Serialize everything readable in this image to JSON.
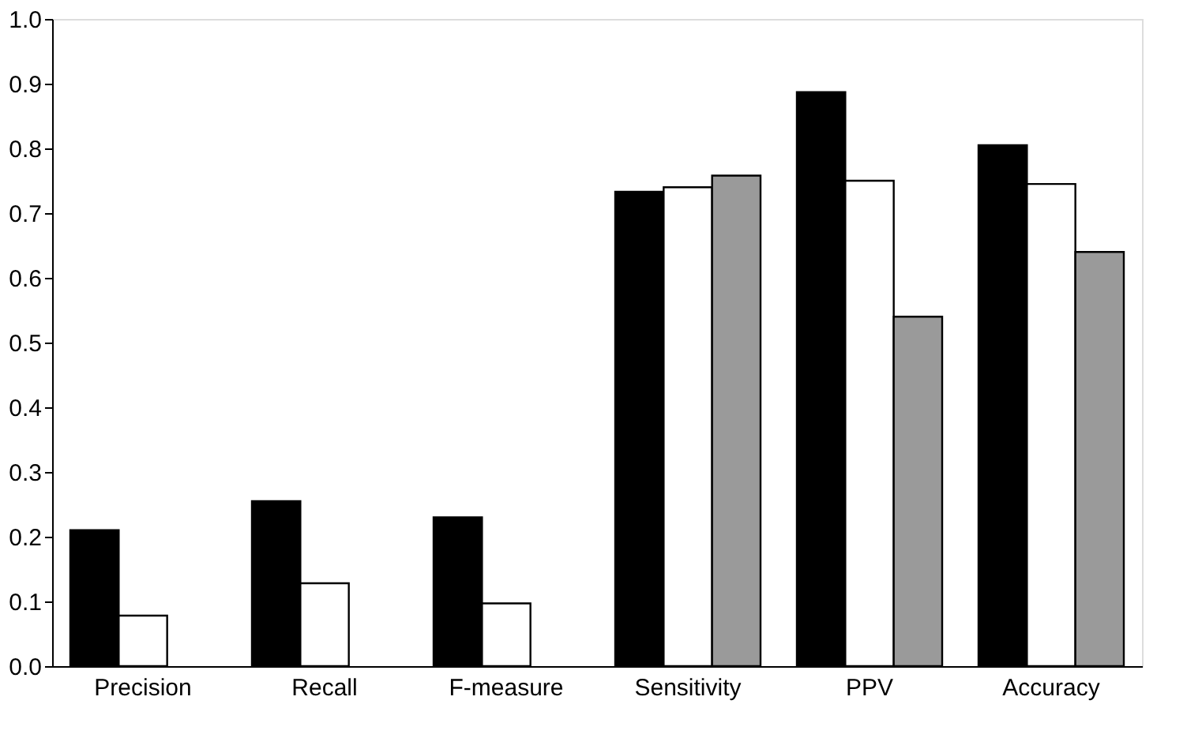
{
  "chart_data": {
    "type": "bar",
    "categories": [
      "Precision",
      "Recall",
      "F-measure",
      "Sensitivity",
      "PPV",
      "Accuracy"
    ],
    "series": [
      {
        "color": "#000000",
        "values": [
          0.21,
          0.255,
          0.23,
          0.733,
          0.887,
          0.805
        ]
      },
      {
        "color": "#ffffff",
        "values": [
          0.078,
          0.128,
          0.097,
          0.74,
          0.75,
          0.745
        ]
      },
      {
        "color": "#9a9a9a",
        "values": [
          null,
          null,
          null,
          0.758,
          0.54,
          0.64
        ]
      }
    ],
    "ylim": [
      0,
      1
    ],
    "yticks": [
      {
        "value": 0,
        "label": "0.0"
      },
      {
        "value": 0.1,
        "label": "0.1"
      },
      {
        "value": 0.2,
        "label": "0.2"
      },
      {
        "value": 0.3,
        "label": "0.3"
      },
      {
        "value": 0.4,
        "label": "0.4"
      },
      {
        "value": 0.5,
        "label": "0.5"
      },
      {
        "value": 0.6,
        "label": "0.6"
      },
      {
        "value": 0.7,
        "label": "0.7"
      },
      {
        "value": 0.8,
        "label": "0.8"
      },
      {
        "value": 0.9,
        "label": "0.9"
      },
      {
        "value": 1,
        "label": "1.0"
      }
    ],
    "grid": false,
    "legend": false
  }
}
